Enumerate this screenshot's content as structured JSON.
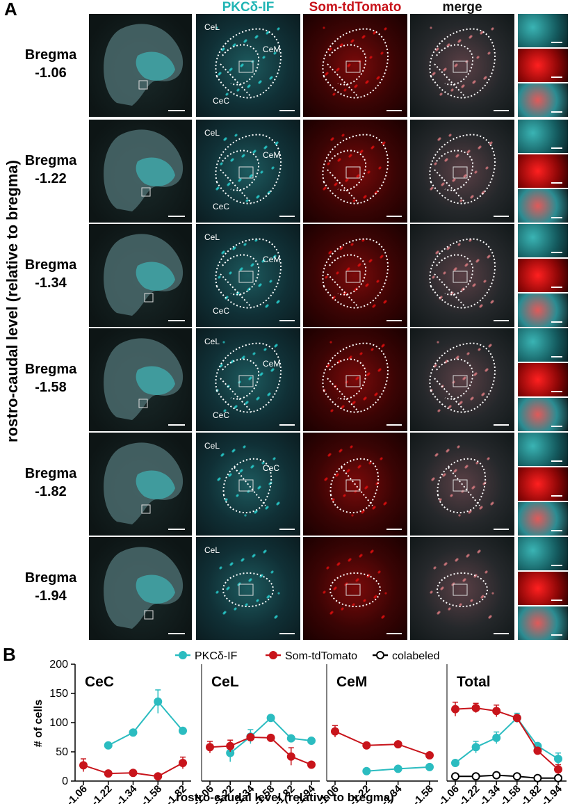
{
  "panelA": {
    "letter": "A",
    "column_headers": [
      {
        "label": "PKCδ-IF",
        "color": "#22b5b5"
      },
      {
        "label": "Som-tdTomato",
        "color": "#c8141b"
      },
      {
        "label": "merge",
        "color": "#111111"
      }
    ],
    "side_label": "rostro-caudal level (relative to bregma)",
    "rows": [
      {
        "word": "Bregma",
        "value": "-1.06",
        "labels": [
          "CeL",
          "CeM",
          "CeC"
        ],
        "shape": "three"
      },
      {
        "word": "Bregma",
        "value": "-1.22",
        "labels": [
          "CeL",
          "CeM",
          "CeC"
        ],
        "shape": "three"
      },
      {
        "word": "Bregma",
        "value": "-1.34",
        "labels": [
          "CeL",
          "CeM",
          "CeC"
        ],
        "shape": "three"
      },
      {
        "word": "Bregma",
        "value": "-1.58",
        "labels": [
          "CeL",
          "CeM",
          "CeC"
        ],
        "shape": "three"
      },
      {
        "word": "Bregma",
        "value": "-1.82",
        "labels": [
          "CeL",
          "CeC"
        ],
        "shape": "two"
      },
      {
        "word": "Bregma",
        "value": "-1.94",
        "labels": [
          "CeL"
        ],
        "shape": "one"
      }
    ],
    "colors": {
      "cyan": "#2ad0d0",
      "red": "#e01010",
      "dark": "#0c1414"
    }
  },
  "panelB": {
    "letter": "B",
    "legend": [
      {
        "label": "PKCδ-IF",
        "color": "#2bbcc0",
        "fill": "filled"
      },
      {
        "label": "Som-tdTomato",
        "color": "#c8141b",
        "fill": "filled"
      },
      {
        "label": "colabeled",
        "color": "#000000",
        "fill": "open"
      }
    ],
    "ylabel": "# of cells",
    "xlabel": "rostro-caudal level (relative to bregma)",
    "yticks": [
      "0",
      "50",
      "100",
      "150",
      "200"
    ]
  },
  "chart_data": [
    {
      "type": "line",
      "title": "CeC",
      "ylim": [
        0,
        200
      ],
      "categories": [
        "-1.06",
        "-1.22",
        "-1.34",
        "-1.58",
        "-1.82"
      ],
      "series": [
        {
          "name": "PKCδ-IF",
          "values": [
            null,
            61,
            83,
            136,
            86
          ],
          "errors": [
            null,
            0,
            0,
            20,
            0
          ]
        },
        {
          "name": "Som-tdTomato",
          "values": [
            27,
            13,
            14,
            8,
            31
          ],
          "errors": [
            11,
            0,
            0,
            0,
            10
          ]
        }
      ]
    },
    {
      "type": "line",
      "title": "CeL",
      "ylim": [
        0,
        200
      ],
      "categories": [
        "-1.06",
        "-1.22",
        "-1.34",
        "-1.58",
        "-1.82",
        "-1.94"
      ],
      "series": [
        {
          "name": "PKCδ-IF",
          "values": [
            null,
            48,
            76,
            108,
            73,
            69
          ],
          "errors": [
            null,
            15,
            12,
            0,
            0,
            0
          ]
        },
        {
          "name": "Som-tdTomato",
          "values": [
            58,
            60,
            75,
            74,
            42,
            28
          ],
          "errors": [
            10,
            10,
            0,
            0,
            15,
            0
          ]
        }
      ]
    },
    {
      "type": "line",
      "title": "CeM",
      "ylim": [
        0,
        200
      ],
      "categories": [
        "-1.06",
        "-1.22",
        "-1.34",
        "-1.58"
      ],
      "series": [
        {
          "name": "PKCδ-IF",
          "values": [
            null,
            17,
            21,
            24
          ],
          "errors": [
            null,
            0,
            0,
            0
          ]
        },
        {
          "name": "Som-tdTomato",
          "values": [
            85,
            61,
            63,
            44
          ],
          "errors": [
            10,
            0,
            0,
            0
          ]
        }
      ]
    },
    {
      "type": "line",
      "title": "Total",
      "ylim": [
        0,
        200
      ],
      "categories": [
        "-1.06",
        "-1.22",
        "-1.34",
        "-1.58",
        "-1.82",
        "-1.94"
      ],
      "series": [
        {
          "name": "PKCδ-IF",
          "values": [
            31,
            58,
            74,
            108,
            60,
            38
          ],
          "errors": [
            0,
            10,
            10,
            8,
            0,
            10
          ]
        },
        {
          "name": "Som-tdTomato",
          "values": [
            123,
            125,
            120,
            108,
            52,
            20
          ],
          "errors": [
            12,
            8,
            10,
            0,
            0,
            8
          ]
        },
        {
          "name": "colabeled",
          "values": [
            8,
            8,
            10,
            8,
            5,
            5
          ],
          "errors": [
            0,
            0,
            0,
            0,
            0,
            0
          ]
        }
      ]
    }
  ]
}
